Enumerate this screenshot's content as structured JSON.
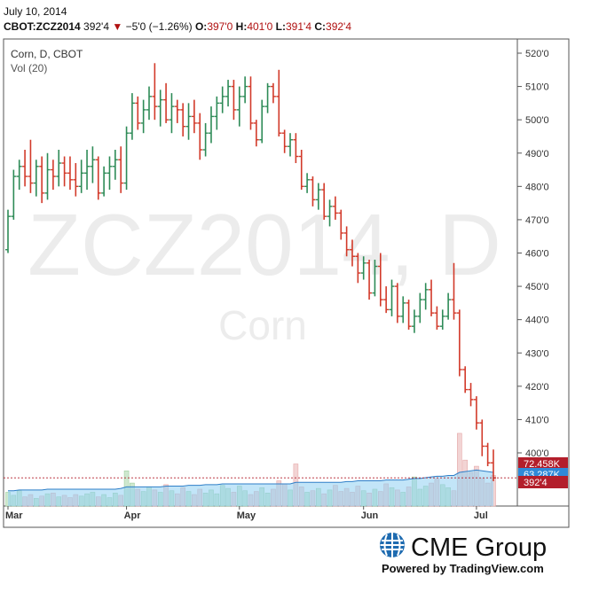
{
  "header": {
    "date": "July 10, 2014",
    "symbol": "CBOT:ZCZ2014",
    "last": "392'4",
    "change": "−5'0 (−1.26%)",
    "open_label": "O:",
    "open": "397'0",
    "high_label": "H:",
    "high": "401'0",
    "low_label": "L:",
    "low": "391'4",
    "close_label": "C:",
    "close": "392'4"
  },
  "chart_title": "Corn, D, CBOT",
  "volume_label": "Vol (20)",
  "watermark": {
    "symbol": "ZCZ2014, D",
    "name": "Corn"
  },
  "footer": {
    "logo_text": "CME Group",
    "powered": "Powered by TradingView.com"
  },
  "colors": {
    "up": "#2e8b57",
    "down": "#d23a2a",
    "volume_area": "#8fcff2",
    "volume_line": "#2f7fc8",
    "badge_red": "#b31e2b",
    "badge_blue": "#2f89d8",
    "logo_blue": "#1e6bb0"
  },
  "chart_data": {
    "type": "ohlc",
    "price_axis": {
      "ticks": [
        "520'0",
        "510'0",
        "500'0",
        "490'0",
        "480'0",
        "470'0",
        "460'0",
        "450'0",
        "440'0",
        "430'0",
        "420'0",
        "410'0",
        "400'0"
      ],
      "range": [
        388,
        523
      ]
    },
    "x_ticks": [
      "Mar",
      "Apr",
      "May",
      "Jun",
      "Jul"
    ],
    "price_badges": [
      "392'4"
    ],
    "volume_badges": [
      "72.458K",
      "63.287K"
    ],
    "ohlc": [
      [
        461,
        473,
        460,
        471
      ],
      [
        471,
        485,
        470,
        483
      ],
      [
        483,
        488,
        479,
        486
      ],
      [
        486,
        491,
        480,
        483
      ],
      [
        483,
        494,
        478,
        481
      ],
      [
        481,
        488,
        477,
        486
      ],
      [
        486,
        489,
        475,
        478
      ],
      [
        478,
        490,
        476,
        485
      ],
      [
        485,
        488,
        479,
        483
      ],
      [
        483,
        491,
        480,
        487
      ],
      [
        487,
        489,
        480,
        484
      ],
      [
        484,
        489,
        479,
        482
      ],
      [
        482,
        487,
        477,
        480
      ],
      [
        480,
        488,
        478,
        484
      ],
      [
        484,
        491,
        479,
        486
      ],
      [
        486,
        492,
        481,
        488
      ],
      [
        488,
        489,
        476,
        478
      ],
      [
        478,
        486,
        477,
        484
      ],
      [
        484,
        489,
        479,
        486
      ],
      [
        486,
        491,
        482,
        488
      ],
      [
        488,
        492,
        478,
        481
      ],
      [
        481,
        498,
        479,
        496
      ],
      [
        496,
        508,
        494,
        505
      ],
      [
        505,
        507,
        497,
        499
      ],
      [
        499,
        506,
        496,
        503
      ],
      [
        503,
        510,
        500,
        507
      ],
      [
        507,
        517,
        500,
        504
      ],
      [
        504,
        509,
        498,
        506
      ],
      [
        506,
        511,
        499,
        500
      ],
      [
        500,
        508,
        496,
        504
      ],
      [
        504,
        506,
        499,
        503
      ],
      [
        503,
        505,
        495,
        498
      ],
      [
        498,
        505,
        494,
        501
      ],
      [
        501,
        506,
        496,
        499
      ],
      [
        499,
        502,
        488,
        491
      ],
      [
        491,
        499,
        489,
        496
      ],
      [
        496,
        504,
        493,
        501
      ],
      [
        501,
        507,
        497,
        505
      ],
      [
        505,
        510,
        502,
        507
      ],
      [
        507,
        512,
        504,
        510
      ],
      [
        510,
        512,
        500,
        503
      ],
      [
        503,
        510,
        498,
        507
      ],
      [
        507,
        513,
        505,
        510
      ],
      [
        510,
        513,
        497,
        499
      ],
      [
        499,
        500,
        492,
        494
      ],
      [
        494,
        506,
        493,
        504
      ],
      [
        504,
        511,
        502,
        510
      ],
      [
        510,
        511,
        505,
        507
      ],
      [
        507,
        515,
        495,
        496
      ],
      [
        496,
        497,
        490,
        492
      ],
      [
        492,
        496,
        489,
        494
      ],
      [
        494,
        496,
        487,
        489
      ],
      [
        489,
        491,
        479,
        480
      ],
      [
        480,
        484,
        478,
        482
      ],
      [
        482,
        483,
        474,
        476
      ],
      [
        476,
        481,
        473,
        479
      ],
      [
        479,
        481,
        470,
        471
      ],
      [
        471,
        476,
        468,
        474
      ],
      [
        474,
        477,
        470,
        472
      ],
      [
        472,
        473,
        464,
        466
      ],
      [
        466,
        468,
        459,
        461
      ],
      [
        461,
        464,
        456,
        459
      ],
      [
        459,
        460,
        451,
        454
      ],
      [
        454,
        459,
        452,
        457
      ],
      [
        457,
        458,
        446,
        448
      ],
      [
        448,
        458,
        447,
        456
      ],
      [
        456,
        460,
        444,
        446
      ],
      [
        446,
        450,
        442,
        443
      ],
      [
        443,
        452,
        441,
        450
      ],
      [
        450,
        451,
        439,
        441
      ],
      [
        441,
        447,
        439,
        445
      ],
      [
        445,
        446,
        437,
        438
      ],
      [
        438,
        443,
        436,
        441
      ],
      [
        441,
        448,
        439,
        446
      ],
      [
        446,
        451,
        443,
        449
      ],
      [
        449,
        452,
        441,
        442
      ],
      [
        442,
        444,
        437,
        438
      ],
      [
        438,
        443,
        437,
        441
      ],
      [
        441,
        448,
        440,
        446
      ],
      [
        446,
        457,
        440,
        442
      ],
      [
        442,
        443,
        423,
        425
      ],
      [
        425,
        426,
        418,
        419
      ],
      [
        419,
        421,
        414,
        416
      ],
      [
        416,
        417,
        407,
        409
      ],
      [
        409,
        410,
        399,
        402
      ],
      [
        402,
        403,
        396,
        397
      ],
      [
        397,
        401,
        391.5,
        392.5
      ]
    ],
    "volume_range": [
      0,
      110
    ],
    "volume": [
      18,
      14,
      20,
      12,
      15,
      10,
      13,
      16,
      17,
      12,
      14,
      11,
      15,
      13,
      16,
      18,
      12,
      15,
      11,
      17,
      14,
      46,
      30,
      22,
      19,
      25,
      21,
      18,
      28,
      20,
      16,
      24,
      19,
      15,
      22,
      17,
      21,
      16,
      27,
      23,
      18,
      26,
      20,
      15,
      19,
      24,
      17,
      22,
      33,
      29,
      21,
      55,
      25,
      18,
      20,
      23,
      16,
      21,
      27,
      19,
      23,
      18,
      26,
      20,
      17,
      22,
      19,
      29,
      24,
      21,
      18,
      25,
      38,
      22,
      26,
      30,
      35,
      28,
      24,
      20,
      95,
      60,
      44,
      52,
      36,
      30,
      40
    ],
    "volume_ma": [
      20,
      20,
      21,
      21,
      21,
      21,
      21,
      22,
      22,
      22,
      22,
      22,
      22,
      22,
      22,
      22,
      22,
      22,
      22,
      22,
      23,
      25,
      25,
      25,
      25,
      25,
      25,
      25,
      26,
      26,
      26,
      26,
      27,
      27,
      27,
      28,
      28,
      28,
      29,
      29,
      29,
      29,
      29,
      29,
      29,
      29,
      29,
      29,
      29,
      29,
      29,
      31,
      31,
      31,
      31,
      31,
      31,
      31,
      31,
      31,
      32,
      32,
      33,
      33,
      33,
      33,
      33,
      34,
      34,
      34,
      34,
      35,
      36,
      36,
      37,
      38,
      39,
      39,
      40,
      40,
      44,
      45,
      46,
      47,
      46,
      45,
      44
    ]
  }
}
